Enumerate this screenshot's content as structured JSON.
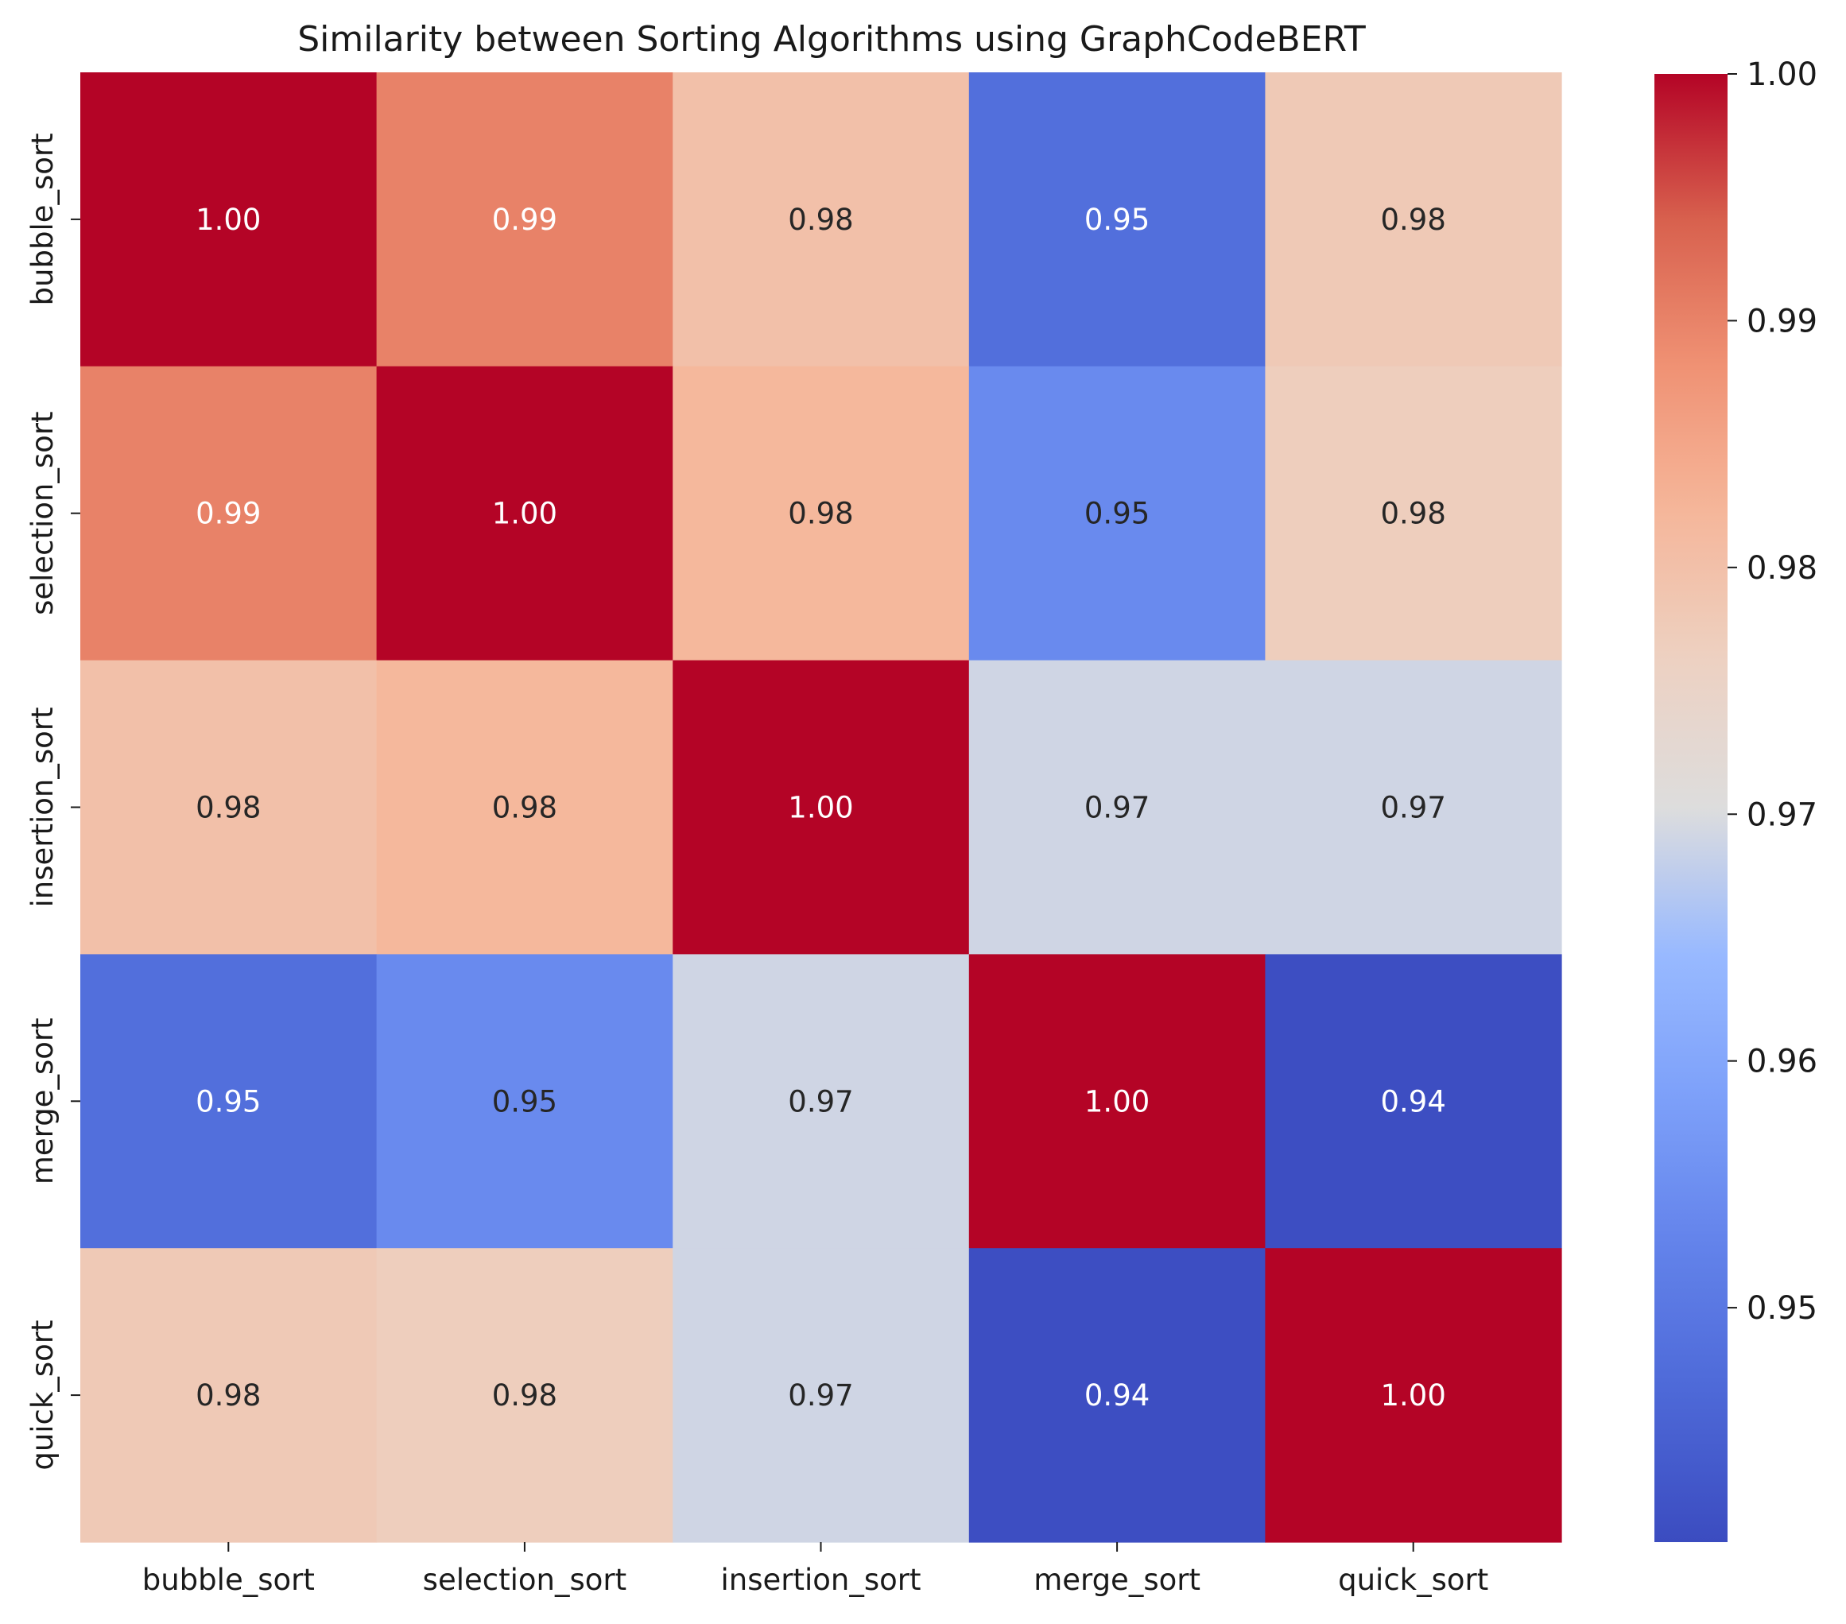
{
  "chart_data": {
    "type": "heatmap",
    "title": "Similarity between Sorting Algorithms using GraphCodeBERT",
    "xlabel": "",
    "ylabel": "",
    "colormap": "coolwarm",
    "row_labels": [
      "bubble_sort",
      "selection_sort",
      "insertion_sort",
      "merge_sort",
      "quick_sort"
    ],
    "col_labels": [
      "bubble_sort",
      "selection_sort",
      "insertion_sort",
      "merge_sort",
      "quick_sort"
    ],
    "values": [
      [
        1.0,
        0.99,
        0.98,
        0.948,
        0.978
      ],
      [
        0.99,
        1.0,
        0.982,
        0.954,
        0.977
      ],
      [
        0.98,
        0.982,
        1.0,
        0.969,
        0.969
      ],
      [
        0.948,
        0.954,
        0.969,
        1.0,
        0.941
      ],
      [
        0.978,
        0.977,
        0.969,
        0.941,
        1.0
      ]
    ],
    "annotations": [
      [
        "1.00",
        "0.99",
        "0.98",
        "0.95",
        "0.98"
      ],
      [
        "0.99",
        "1.00",
        "0.98",
        "0.95",
        "0.98"
      ],
      [
        "0.98",
        "0.98",
        "1.00",
        "0.97",
        "0.97"
      ],
      [
        "0.95",
        "0.95",
        "0.97",
        "1.00",
        "0.94"
      ],
      [
        "0.98",
        "0.98",
        "0.97",
        "0.94",
        "1.00"
      ]
    ],
    "colorbar": {
      "range": [
        0.9405,
        1.0
      ],
      "ticks": [
        1.0,
        0.99,
        0.98,
        0.97,
        0.96,
        0.95
      ],
      "tick_labels": [
        "1.00",
        "0.99",
        "0.98",
        "0.97",
        "0.96",
        "0.95"
      ]
    }
  }
}
